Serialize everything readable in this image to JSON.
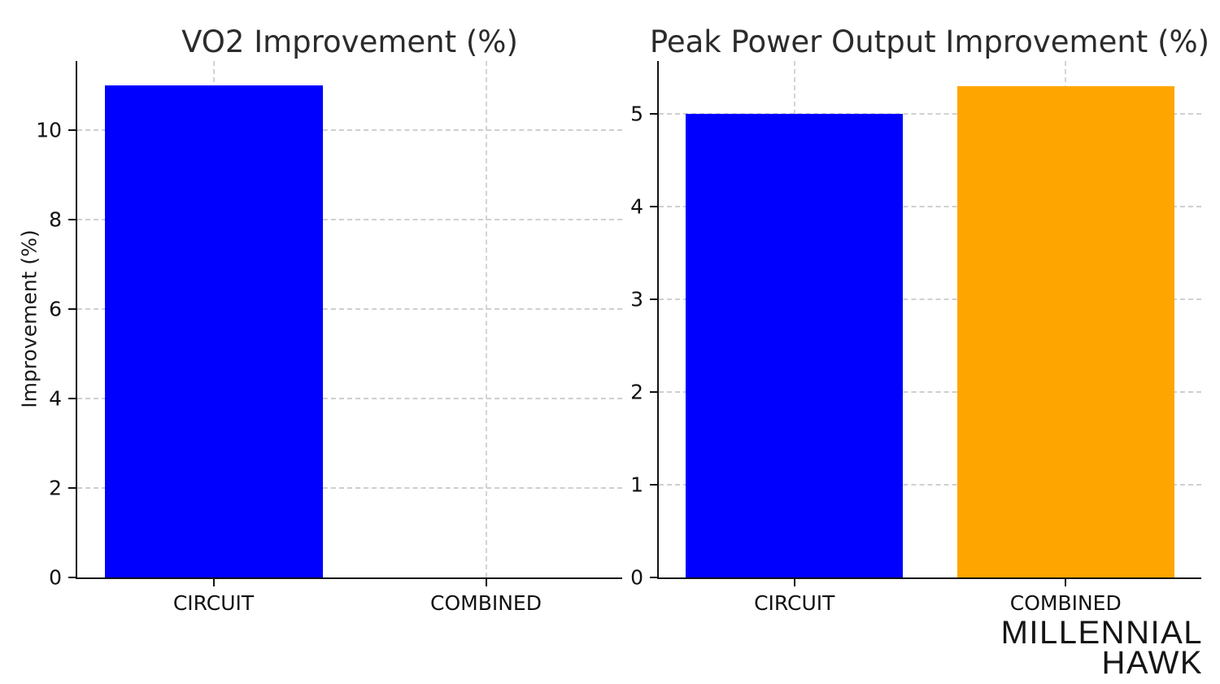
{
  "chart_data": [
    {
      "type": "bar",
      "title": "VO2 Improvement (%)",
      "xlabel": "",
      "ylabel": "Improvement (%)",
      "categories": [
        "CIRCUIT",
        "COMBINED"
      ],
      "values": [
        11.0,
        0.0
      ],
      "bar_colors": [
        "#0000ff",
        "#ffa500"
      ],
      "yticks": [
        0,
        2,
        4,
        6,
        8,
        10
      ],
      "ylim": [
        0,
        11.55
      ],
      "grid": "dashed horizontal at yticks and vertical at category centers",
      "legend": null
    },
    {
      "type": "bar",
      "title": "Peak Power Output Improvement (%)",
      "xlabel": "",
      "ylabel": "",
      "categories": [
        "CIRCUIT",
        "COMBINED"
      ],
      "values": [
        5.0,
        5.3
      ],
      "bar_colors": [
        "#0000ff",
        "#ffa500"
      ],
      "yticks": [
        0,
        1,
        2,
        3,
        4,
        5
      ],
      "ylim": [
        0,
        5.57
      ],
      "grid": "dashed horizontal at yticks and vertical at category centers",
      "legend": null
    }
  ],
  "branding": {
    "logo_line1": "MILLENNIAL",
    "logo_line2": "HAWK"
  },
  "colors": {
    "bar_blue": "#0000ff",
    "bar_orange": "#ffa500",
    "grid": "#cccccc",
    "axis": "#111111",
    "text": "#1a1a1a"
  }
}
